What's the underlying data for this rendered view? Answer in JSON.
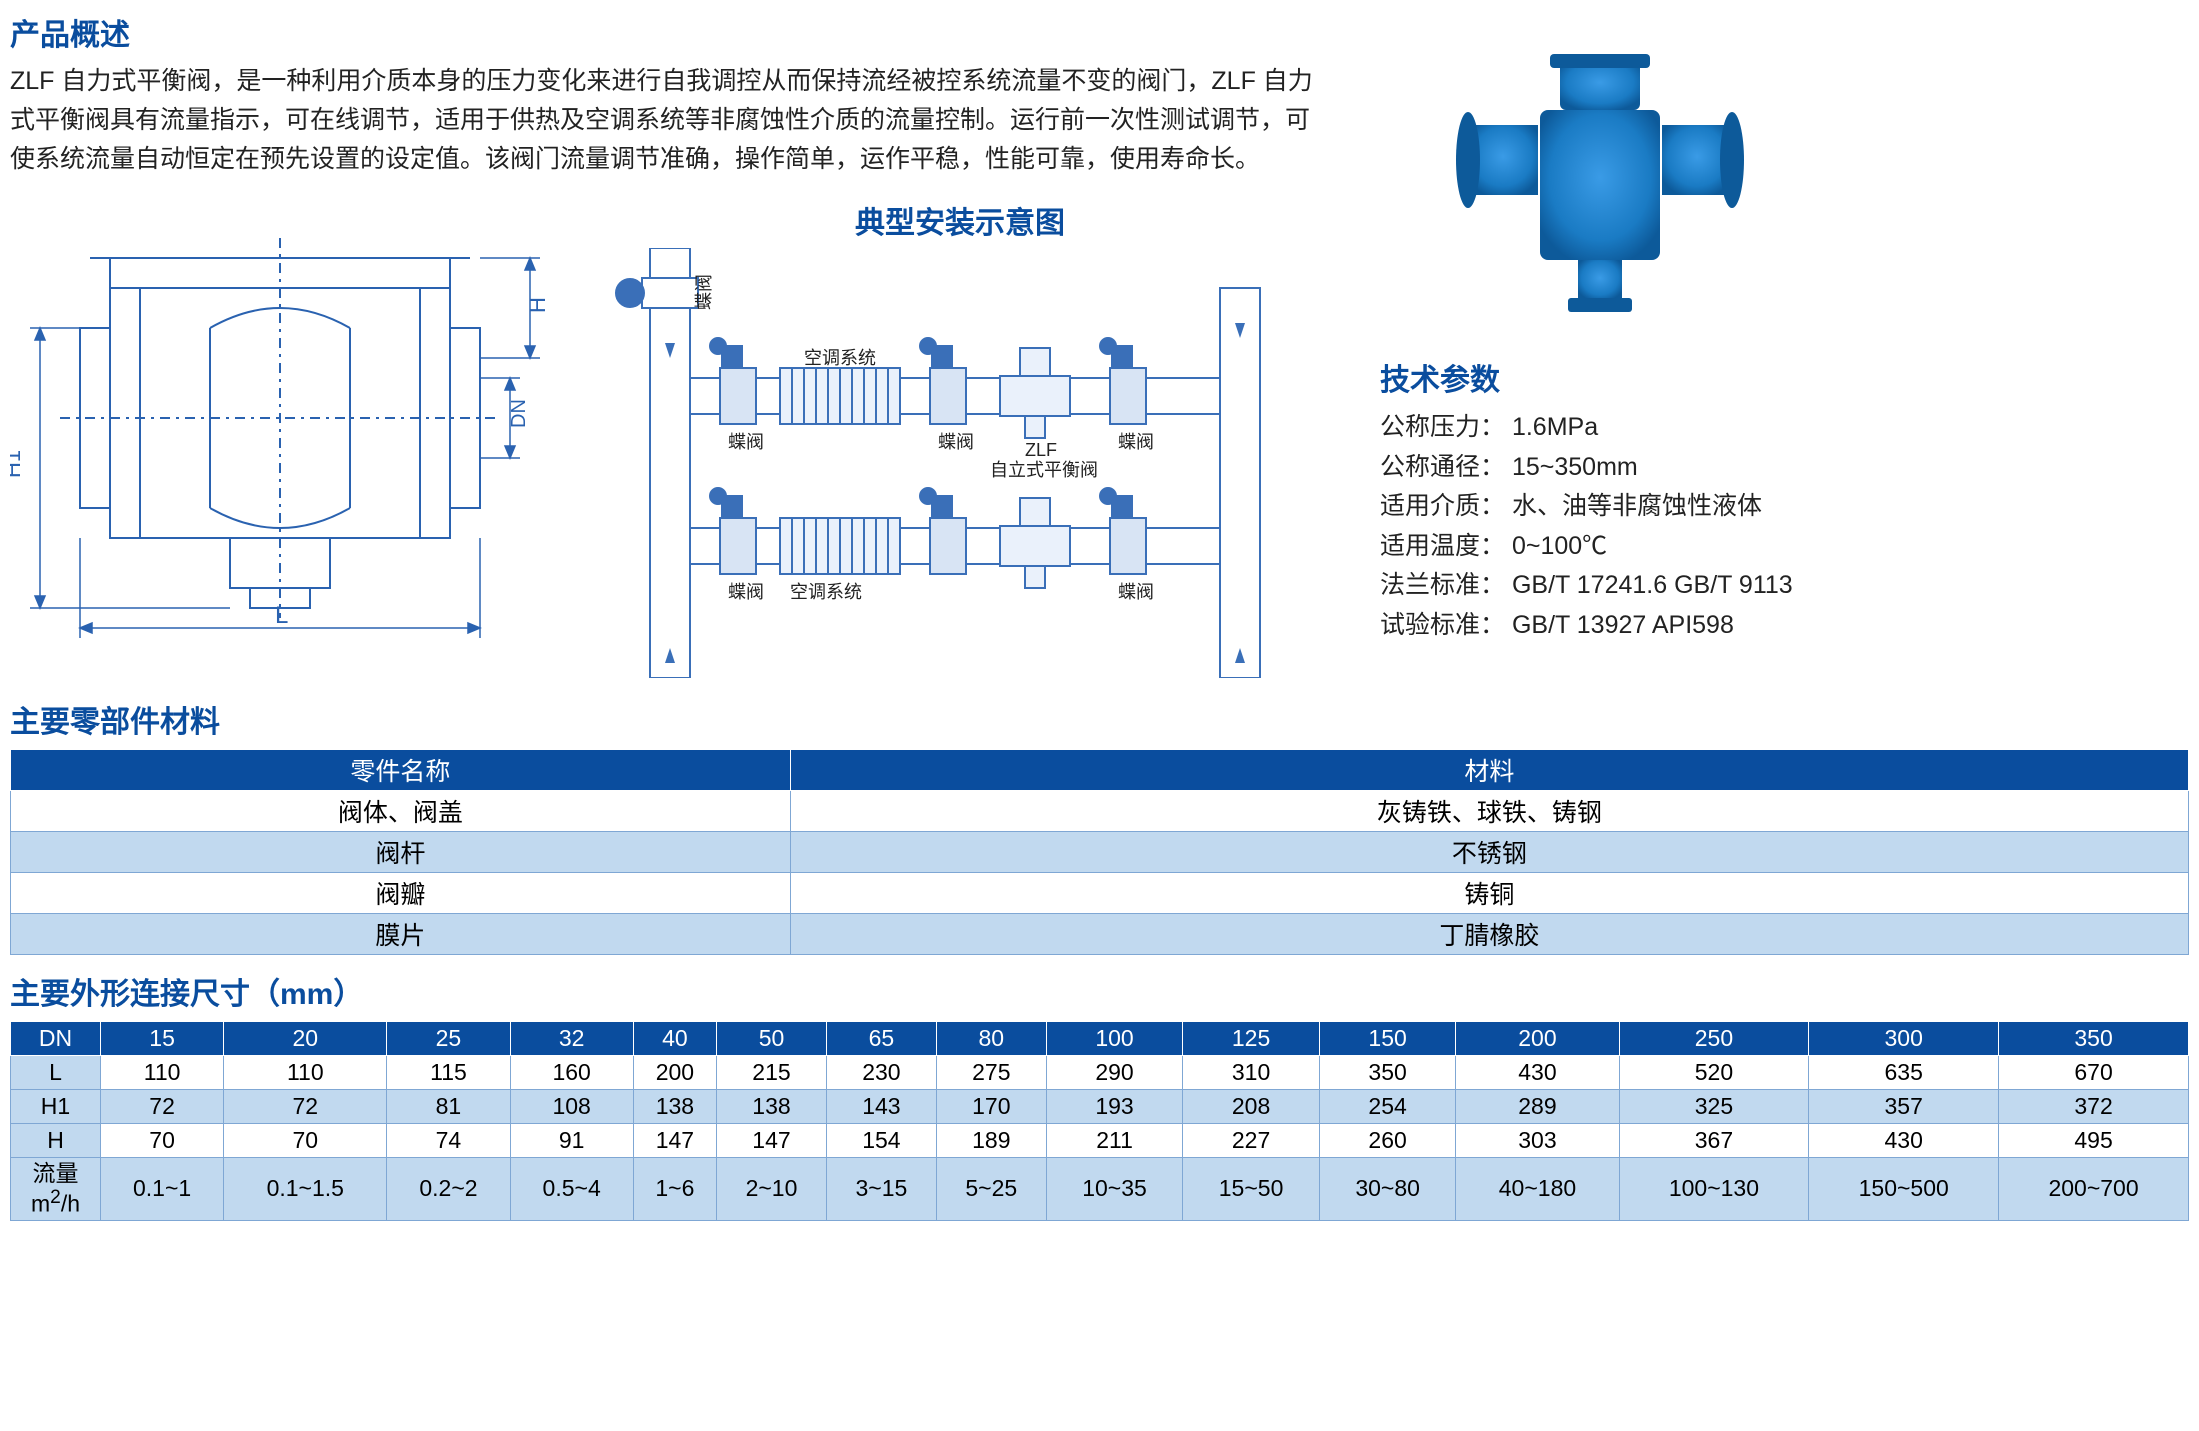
{
  "colors": {
    "brand_blue": "#0a4d9e",
    "table_header_bg": "#0a4d9e",
    "table_alt_bg": "#c1d9ef",
    "border": "#7fa7d4",
    "diagram_stroke": "#2a62b0",
    "product_fill": "#1a7bc4",
    "product_shade": "#0d5a9a"
  },
  "overview": {
    "title": "产品概述",
    "text": "ZLF 自力式平衡阀，是一种利用介质本身的压力变化来进行自我调控从而保持流经被控系统流量不变的阀门，ZLF 自力式平衡阀具有流量指示，可在线调节，适用于供热及空调系统等非腐蚀性介质的流量控制。运行前一次性测试调节，可使系统流量自动恒定在预先设置的设定值。该阀门流量调节准确，操作简单，运作平稳，性能可靠，使用寿命长。"
  },
  "install_diagram": {
    "title": "典型安装示意图",
    "labels": {
      "butterfly_valve": "蝶阀",
      "ac_system": "空调系统",
      "zlf": "ZLF",
      "zlf_sub": "自立式平衡阀"
    }
  },
  "outline_labels": {
    "L": "L",
    "H": "H",
    "H1": "H1",
    "DN": "DN"
  },
  "tech": {
    "title": "技术参数",
    "params": [
      {
        "label": "公称压力：",
        "value": "1.6MPa"
      },
      {
        "label": "公称通径：",
        "value": "15~350mm"
      },
      {
        "label": "适用介质：",
        "value": "水、油等非腐蚀性液体"
      },
      {
        "label": "适用温度：",
        "value": "0~100℃"
      },
      {
        "label": "法兰标准：",
        "value": "GB/T 17241.6 GB/T 9113"
      },
      {
        "label": "试验标准：",
        "value": "GB/T 13927 API598"
      }
    ]
  },
  "materials": {
    "title": "主要零部件材料",
    "headers": [
      "零件名称",
      "材料"
    ],
    "rows": [
      [
        "阀体、阀盖",
        "灰铸铁、球铁、铸钢"
      ],
      [
        "阀杆",
        "不锈钢"
      ],
      [
        "阀瓣",
        "铸铜"
      ],
      [
        "膜片",
        "丁腈橡胶"
      ]
    ]
  },
  "dimensions": {
    "title": "主要外形连接尺寸（mm）",
    "dn_label": "DN",
    "dn": [
      "15",
      "20",
      "25",
      "32",
      "40",
      "50",
      "65",
      "80",
      "100",
      "125",
      "150",
      "200",
      "250",
      "300",
      "350"
    ],
    "rows": [
      {
        "label": "L",
        "values": [
          "110",
          "110",
          "115",
          "160",
          "200",
          "215",
          "230",
          "275",
          "290",
          "310",
          "350",
          "430",
          "520",
          "635",
          "670"
        ]
      },
      {
        "label": "H1",
        "values": [
          "72",
          "72",
          "81",
          "108",
          "138",
          "138",
          "143",
          "170",
          "193",
          "208",
          "254",
          "289",
          "325",
          "357",
          "372"
        ],
        "alt": true
      },
      {
        "label": "H",
        "values": [
          "70",
          "70",
          "74",
          "91",
          "147",
          "147",
          "154",
          "189",
          "211",
          "227",
          "260",
          "303",
          "367",
          "430",
          "495"
        ]
      },
      {
        "label": "流量m²/h",
        "values": [
          "0.1~1",
          "0.1~1.5",
          "0.2~2",
          "0.5~4",
          "1~6",
          "2~10",
          "3~15",
          "5~25",
          "10~35",
          "15~50",
          "30~80",
          "40~180",
          "100~130",
          "150~500",
          "200~700"
        ],
        "alt": true,
        "multiline": true
      }
    ]
  }
}
